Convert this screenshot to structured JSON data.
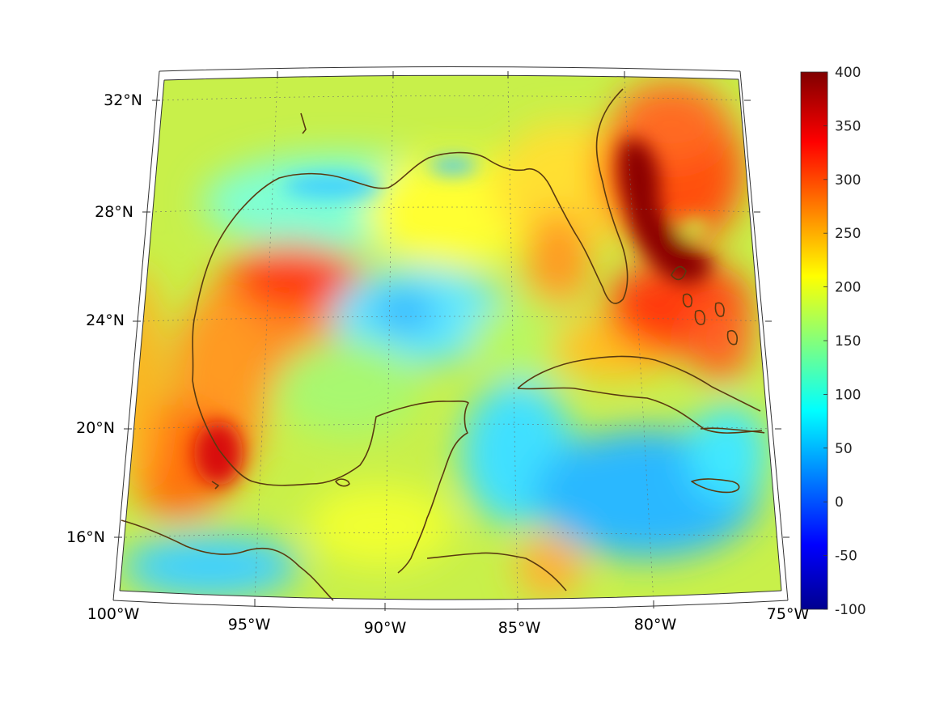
{
  "map": {
    "projection": "lambert-conformal-conic",
    "field_type": "heatmap",
    "lon_range": [
      -100,
      -75
    ],
    "lat_range": [
      14,
      33
    ],
    "lon_ticks": [
      "100°W",
      "95°W",
      "90°W",
      "85°W",
      "80°W",
      "75°W"
    ],
    "lat_ticks": [
      "32°N",
      "28°N",
      "24°N",
      "20°N",
      "16°N"
    ],
    "coastline_color": "#5a3a10",
    "grid": true
  },
  "colorbar": {
    "colormap": "jet",
    "range": [
      -100,
      400
    ],
    "ticks": [
      "400",
      "350",
      "300",
      "250",
      "200",
      "150",
      "100",
      "50",
      "0",
      "-50",
      "-100"
    ],
    "colors": [
      "#00008f",
      "#0000ff",
      "#00ffff",
      "#ffff00",
      "#ff0000",
      "#800000"
    ]
  }
}
